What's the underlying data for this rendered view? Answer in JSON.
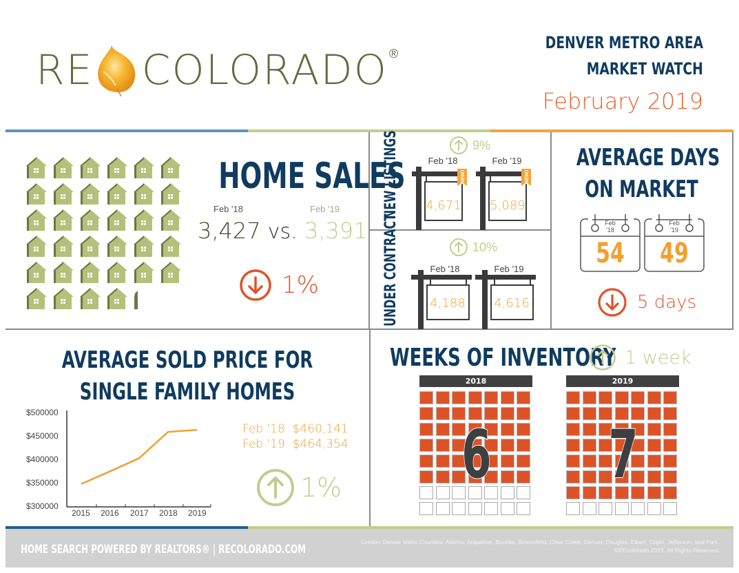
{
  "header": {
    "logo_left": "RE",
    "logo_right": "COLORADO",
    "logo_reg": "®",
    "title_line1": "DENVER METRO AREA",
    "title_line2": "MARKET WATCH",
    "date": "February 2019"
  },
  "colors": {
    "navy": "#0f3b5f",
    "blue_rule": "#5b93c0",
    "green_rule": "#c2cd8e",
    "orange_rule": "#f5a33a",
    "house_green": "#b5c07a",
    "down_red": "#e0532a",
    "up_green": "#c2cd8e",
    "value_orange": "#f0a030",
    "grid_orange": "#dd5327"
  },
  "home_sales": {
    "title": "HOME SALES",
    "label_18": "Feb '18",
    "label_19": "Feb '19",
    "value_18": "3,427",
    "vs": "vs.",
    "value_19": "3,391",
    "change_icon": "arrow-down-circle-icon",
    "change": "1%",
    "house_icon_count": 34
  },
  "new_listings": {
    "title": "NEW LISTINGS",
    "change_icon": "arrow-up-circle-icon",
    "change": "9%",
    "label_18": "Feb '18",
    "label_19": "Feb '19",
    "value_18": "4,671",
    "value_19": "5,089",
    "badge": "NEW!"
  },
  "under_contract": {
    "title": "UNDER CONTRACT",
    "change_icon": "arrow-up-circle-icon",
    "change": "10%",
    "label_18": "Feb '18",
    "label_19": "Feb '19",
    "value_18": "4,188",
    "value_19": "4,616"
  },
  "days_on_market": {
    "title_line1": "AVERAGE DAYS",
    "title_line2": "ON MARKET",
    "cal_18_month": "Feb",
    "cal_18_year": "'18",
    "cal_19_month": "Feb",
    "cal_19_year": "'19",
    "value_18": "54",
    "value_19": "49",
    "change_icon": "arrow-down-circle-icon",
    "change": "5 days"
  },
  "sold_price": {
    "title_line1": "AVERAGE SOLD PRICE FOR",
    "title_line2": "SINGLE FAMILY HOMES",
    "row_18_label": "Feb '18",
    "row_18_value": "$460,141",
    "row_19_label": "Feb '19",
    "row_19_value": "$464,354",
    "change_icon": "arrow-up-circle-icon",
    "change": "1%"
  },
  "chart_data": {
    "type": "line",
    "title": "Average Sold Price for Single Family Homes",
    "xlabel": "",
    "ylabel": "",
    "categories": [
      "2015",
      "2016",
      "2017",
      "2018",
      "2019"
    ],
    "values": [
      349000,
      376000,
      404000,
      460141,
      464354
    ],
    "ylim": [
      300000,
      500000
    ],
    "yticks": [
      "$500000",
      "$450000",
      "$400000",
      "$350000",
      "$300000"
    ],
    "grid": false,
    "legend": "none",
    "line_color": "#f0a030"
  },
  "inventory": {
    "title": "WEEKS OF INVENTORY",
    "change_icon": "arrow-up-circle-icon",
    "change": "1 week",
    "year_18": "2018",
    "year_19": "2019",
    "weeks_18": "6",
    "weeks_19": "7",
    "rows_filled_18": 6,
    "rows_filled_19": 7,
    "rows_total": 8,
    "cols": 7
  },
  "footer": {
    "left": "HOME SEARCH POWERED BY REALTORS® | RECOLORADO.COM",
    "right_line1": "Greater Denver Metro Counties: Adams, Arapahoe, Boulder, Broomfield, Clear Creek, Denver, Douglas, Elbert, Gilpin, Jefferson, and Park.",
    "right_line2": "©REcolorado 2019. All Rights Reserved."
  }
}
